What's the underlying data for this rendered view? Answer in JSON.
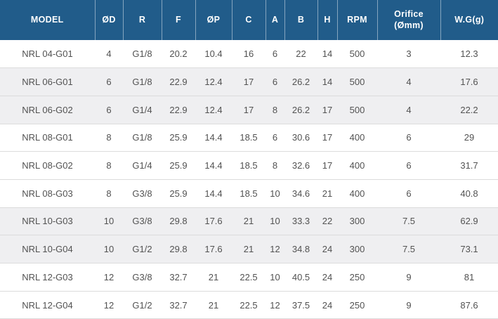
{
  "chart_data": {
    "type": "table",
    "title": "NRL series specification table",
    "columns": [
      "MODEL",
      "ØD",
      "R",
      "F",
      "ØP",
      "C",
      "A",
      "B",
      "H",
      "RPM",
      "Orifice\n(Ømm)",
      "W.G(g)"
    ],
    "rows": [
      {
        "shaded": false,
        "cells": [
          "NRL 04-G01",
          "4",
          "G1/8",
          "20.2",
          "10.4",
          "16",
          "6",
          "22",
          "14",
          "500",
          "3",
          "12.3"
        ]
      },
      {
        "shaded": true,
        "cells": [
          "NRL 06-G01",
          "6",
          "G1/8",
          "22.9",
          "12.4",
          "17",
          "6",
          "26.2",
          "14",
          "500",
          "4",
          "17.6"
        ]
      },
      {
        "shaded": true,
        "cells": [
          "NRL 06-G02",
          "6",
          "G1/4",
          "22.9",
          "12.4",
          "17",
          "8",
          "26.2",
          "17",
          "500",
          "4",
          "22.2"
        ]
      },
      {
        "shaded": false,
        "cells": [
          "NRL 08-G01",
          "8",
          "G1/8",
          "25.9",
          "14.4",
          "18.5",
          "6",
          "30.6",
          "17",
          "400",
          "6",
          "29"
        ]
      },
      {
        "shaded": false,
        "cells": [
          "NRL 08-G02",
          "8",
          "G1/4",
          "25.9",
          "14.4",
          "18.5",
          "8",
          "32.6",
          "17",
          "400",
          "6",
          "31.7"
        ]
      },
      {
        "shaded": false,
        "cells": [
          "NRL 08-G03",
          "8",
          "G3/8",
          "25.9",
          "14.4",
          "18.5",
          "10",
          "34.6",
          "21",
          "400",
          "6",
          "40.8"
        ]
      },
      {
        "shaded": true,
        "cells": [
          "NRL 10-G03",
          "10",
          "G3/8",
          "29.8",
          "17.6",
          "21",
          "10",
          "33.3",
          "22",
          "300",
          "7.5",
          "62.9"
        ]
      },
      {
        "shaded": true,
        "cells": [
          "NRL 10-G04",
          "10",
          "G1/2",
          "29.8",
          "17.6",
          "21",
          "12",
          "34.8",
          "24",
          "300",
          "7.5",
          "73.1"
        ]
      },
      {
        "shaded": false,
        "cells": [
          "NRL 12-G03",
          "12",
          "G3/8",
          "32.7",
          "21",
          "22.5",
          "10",
          "40.5",
          "24",
          "250",
          "9",
          "81"
        ]
      },
      {
        "shaded": false,
        "cells": [
          "NRL 12-G04",
          "12",
          "G1/2",
          "32.7",
          "21",
          "22.5",
          "12",
          "37.5",
          "24",
          "250",
          "9",
          "87.6"
        ]
      }
    ]
  },
  "colors": {
    "header_bg": "#215c8a",
    "header_text": "#ffffff",
    "header_separator": "rgba(255,255,255,0.45)",
    "row_bg": "#ffffff",
    "row_shaded_bg": "#efeff1",
    "body_text": "#525252",
    "row_border": "#dcdcdc"
  }
}
